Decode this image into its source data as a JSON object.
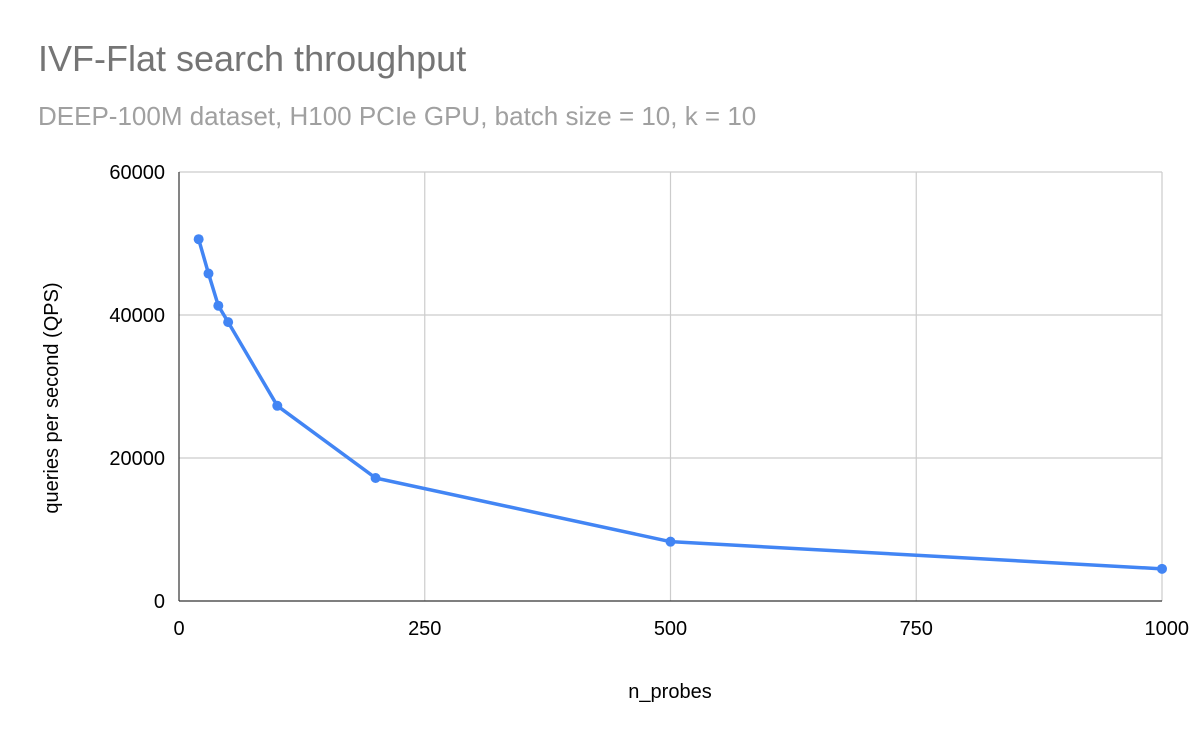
{
  "chart_data": {
    "type": "line",
    "title": "IVF-Flat search throughput",
    "subtitle": "DEEP-100M dataset, H100 PCIe GPU, batch size = 10, k = 10",
    "xlabel": "n_probes",
    "ylabel": "queries per second (QPS)",
    "xlim": [
      0,
      1000
    ],
    "ylim": [
      0,
      60000
    ],
    "x_ticks": [
      "0",
      "250",
      "500",
      "750",
      "1000"
    ],
    "y_ticks": [
      "0",
      "20000",
      "40000",
      "60000"
    ],
    "grid": true,
    "legend": "none",
    "series": [
      {
        "color": "#4285F4",
        "x": [
          20,
          30,
          40,
          50,
          100,
          200,
          500,
          1000
        ],
        "y": [
          50600,
          45800,
          41300,
          39000,
          27300,
          17200,
          8300,
          4500
        ]
      }
    ]
  }
}
